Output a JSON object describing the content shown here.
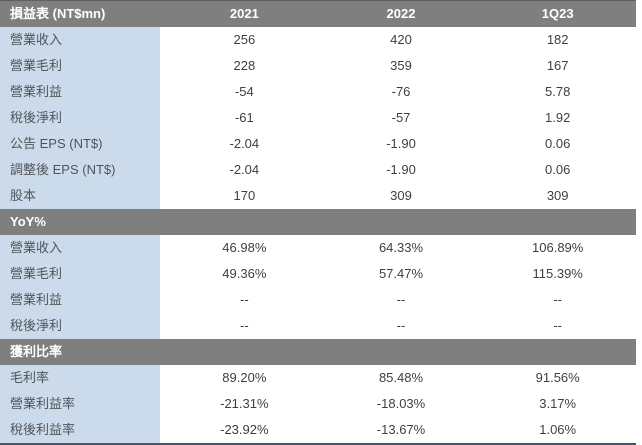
{
  "chart_data": {
    "type": "table",
    "title": "損益表 (NT$mn)",
    "header": {
      "label": "損益表 (NT$mn)",
      "columns": [
        "2021",
        "2022",
        "1Q23"
      ]
    },
    "sections": [
      {
        "title": "",
        "rows": [
          {
            "label": "營業收入",
            "values": [
              "256",
              "420",
              "182"
            ]
          },
          {
            "label": "營業毛利",
            "values": [
              "228",
              "359",
              "167"
            ]
          },
          {
            "label": "營業利益",
            "values": [
              "-54",
              "-76",
              "5.78"
            ]
          },
          {
            "label": "稅後淨利",
            "values": [
              "-61",
              "-57",
              "1.92"
            ]
          },
          {
            "label": "公告 EPS (NT$)",
            "values": [
              "-2.04",
              "-1.90",
              "0.06"
            ]
          },
          {
            "label": "調整後 EPS (NT$)",
            "values": [
              "-2.04",
              "-1.90",
              "0.06"
            ]
          },
          {
            "label": "股本",
            "values": [
              "170",
              "309",
              "309"
            ]
          }
        ]
      },
      {
        "title": "YoY%",
        "rows": [
          {
            "label": "營業收入",
            "values": [
              "46.98%",
              "64.33%",
              "106.89%"
            ]
          },
          {
            "label": "營業毛利",
            "values": [
              "49.36%",
              "57.47%",
              "115.39%"
            ]
          },
          {
            "label": "營業利益",
            "values": [
              "--",
              "--",
              "--"
            ]
          },
          {
            "label": "稅後淨利",
            "values": [
              "--",
              "--",
              "--"
            ]
          }
        ]
      },
      {
        "title": "獲利比率",
        "rows": [
          {
            "label": "毛利率",
            "values": [
              "89.20%",
              "85.48%",
              "91.56%"
            ]
          },
          {
            "label": "營業利益率",
            "values": [
              "-21.31%",
              "-18.03%",
              "3.17%"
            ]
          },
          {
            "label": "稅後利益率",
            "values": [
              "-23.92%",
              "-13.67%",
              "1.06%"
            ]
          }
        ]
      }
    ],
    "layout": {
      "grid": false,
      "legend": false
    }
  },
  "colors": {
    "header_bg": "#7f7f7f",
    "header_text": "#ffffff",
    "label_bg": "#cbdbeb",
    "label_text": "#515558",
    "value_text": "#3f3f3f",
    "row_bg": "#ffffff",
    "top_border": "#5f5f5f",
    "bottom_border": "#4a5466"
  }
}
